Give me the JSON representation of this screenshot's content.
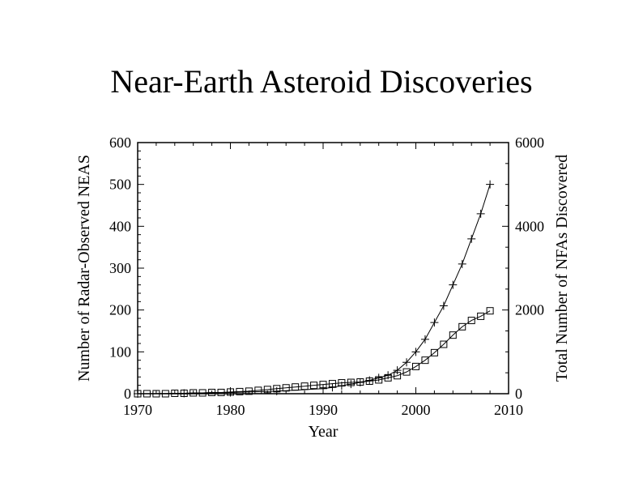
{
  "chart_data": {
    "type": "line",
    "title": "Near-Earth Asteroid Discoveries",
    "xlabel": "Year",
    "ylabel_left": "Number of Radar-Observed NEAS",
    "ylabel_right": "Total Number of NFAs Discovered",
    "xlim": [
      1970,
      2010
    ],
    "ylim_left": [
      0,
      600
    ],
    "ylim_right": [
      0,
      6000
    ],
    "x_ticks": [
      "1970",
      "1980",
      "1990",
      "2000",
      "2010"
    ],
    "y_ticks_left": [
      "0",
      "100",
      "200",
      "300",
      "400",
      "500",
      "600"
    ],
    "y_ticks_right": [
      "0",
      "2000",
      "4000",
      "6000"
    ],
    "grid": false,
    "series": [
      {
        "axis": "left",
        "marker": "square",
        "x": [
          1970,
          1971,
          1972,
          1973,
          1974,
          1975,
          1976,
          1977,
          1978,
          1979,
          1980,
          1981,
          1982,
          1983,
          1984,
          1985,
          1986,
          1987,
          1988,
          1989,
          1990,
          1991,
          1992,
          1993,
          1994,
          1995,
          1996,
          1997,
          1998,
          1999,
          2000,
          2001,
          2002,
          2003,
          2004,
          2005,
          2006,
          2007,
          2008
        ],
        "values": [
          0,
          0,
          0,
          0,
          1,
          1,
          2,
          2,
          3,
          3,
          4,
          5,
          6,
          8,
          10,
          12,
          14,
          16,
          18,
          20,
          22,
          24,
          26,
          27,
          28,
          30,
          33,
          38,
          43,
          52,
          65,
          80,
          98,
          118,
          140,
          160,
          175,
          185,
          198
        ]
      },
      {
        "axis": "right",
        "marker": "plus",
        "x": [
          1970,
          1975,
          1980,
          1985,
          1990,
          1991,
          1992,
          1993,
          1994,
          1995,
          1996,
          1997,
          1998,
          1999,
          2000,
          2001,
          2002,
          2003,
          2004,
          2005,
          2006,
          2007,
          2008
        ],
        "values": [
          0,
          10,
          30,
          60,
          120,
          150,
          190,
          230,
          270,
          320,
          380,
          440,
          560,
          750,
          1000,
          1300,
          1700,
          2100,
          2600,
          3100,
          3700,
          4300,
          5000
        ]
      }
    ]
  }
}
